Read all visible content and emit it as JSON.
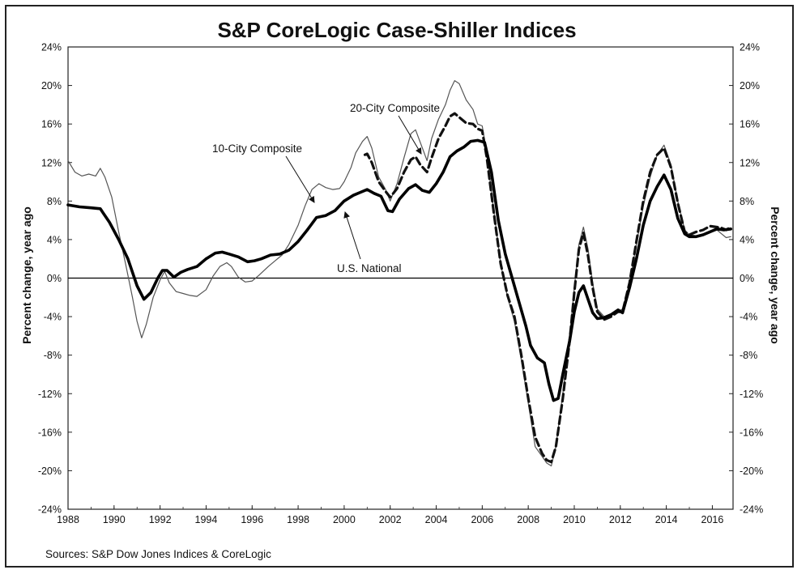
{
  "chart_data": {
    "type": "line",
    "title": "S&P CoreLogic Case-Shiller Indices",
    "ylabel_left": "Percent change, year ago",
    "ylabel_right": "Percent change, year ago",
    "source": "Sources: S&P Dow Jones Indices & CoreLogic",
    "xlim": [
      1988,
      2016.9
    ],
    "ylim": [
      -24,
      24
    ],
    "x_ticks": [
      "1988",
      "1990",
      "1992",
      "1994",
      "1996",
      "1998",
      "2000",
      "2002",
      "2004",
      "2006",
      "2008",
      "2010",
      "2012",
      "2014",
      "2016"
    ],
    "y_ticks": [
      "24%",
      "20%",
      "16%",
      "12%",
      "8%",
      "4%",
      "0%",
      "-4%",
      "-8%",
      "-12%",
      "-16%",
      "-20%",
      "-24%"
    ],
    "annotations": [
      {
        "text": "20-City Composite",
        "series": "20-City Composite"
      },
      {
        "text": "10-City Composite",
        "series": "10-City Composite"
      },
      {
        "text": "U.S. National",
        "series": "U.S. National"
      }
    ],
    "series": [
      {
        "name": "10-City Composite",
        "color": "#555555",
        "style": "thin",
        "points": [
          [
            1988,
            12.2
          ],
          [
            1988.3,
            11
          ],
          [
            1988.6,
            10.6
          ],
          [
            1988.9,
            10.8
          ],
          [
            1989.2,
            10.6
          ],
          [
            1989.4,
            11.4
          ],
          [
            1989.6,
            10.5
          ],
          [
            1989.9,
            8.4
          ],
          [
            1990.2,
            4.8
          ],
          [
            1990.5,
            1.5
          ],
          [
            1990.8,
            -2
          ],
          [
            1991.0,
            -4.5
          ],
          [
            1991.2,
            -6.2
          ],
          [
            1991.4,
            -4.8
          ],
          [
            1991.7,
            -2
          ],
          [
            1992.0,
            -0.2
          ],
          [
            1992.2,
            0.7
          ],
          [
            1992.4,
            -0.5
          ],
          [
            1992.7,
            -1.4
          ],
          [
            1993.0,
            -1.6
          ],
          [
            1993.3,
            -1.8
          ],
          [
            1993.6,
            -1.9
          ],
          [
            1994.0,
            -1.2
          ],
          [
            1994.3,
            0.2
          ],
          [
            1994.6,
            1.2
          ],
          [
            1994.9,
            1.6
          ],
          [
            1995.1,
            1.2
          ],
          [
            1995.4,
            0.1
          ],
          [
            1995.7,
            -0.4
          ],
          [
            1996.0,
            -0.3
          ],
          [
            1996.3,
            0.3
          ],
          [
            1996.7,
            1.2
          ],
          [
            1997.0,
            1.8
          ],
          [
            1997.3,
            2.4
          ],
          [
            1997.6,
            3.5
          ],
          [
            1998.0,
            5.5
          ],
          [
            1998.3,
            7.5
          ],
          [
            1998.6,
            9.2
          ],
          [
            1998.9,
            9.8
          ],
          [
            1999.2,
            9.4
          ],
          [
            1999.5,
            9.2
          ],
          [
            1999.8,
            9.3
          ],
          [
            2000.0,
            10
          ],
          [
            2000.3,
            11.5
          ],
          [
            2000.5,
            13
          ],
          [
            2000.8,
            14.2
          ],
          [
            2001.0,
            14.7
          ],
          [
            2001.2,
            13.5
          ],
          [
            2001.5,
            10.5
          ],
          [
            2001.8,
            9.2
          ],
          [
            2002.0,
            8.0
          ],
          [
            2002.3,
            9.8
          ],
          [
            2002.6,
            12.5
          ],
          [
            2002.9,
            15
          ],
          [
            2003.1,
            15.4
          ],
          [
            2003.4,
            13.5
          ],
          [
            2003.6,
            12.2
          ],
          [
            2003.8,
            14.5
          ],
          [
            2004.1,
            16.5
          ],
          [
            2004.4,
            18
          ],
          [
            2004.6,
            19.5
          ],
          [
            2004.8,
            20.5
          ],
          [
            2005.0,
            20.2
          ],
          [
            2005.3,
            18.5
          ],
          [
            2005.6,
            17.5
          ],
          [
            2005.8,
            16
          ],
          [
            2006.0,
            15.8
          ],
          [
            2006.2,
            13
          ],
          [
            2006.5,
            7
          ],
          [
            2006.8,
            1.5
          ],
          [
            2007.1,
            -2
          ],
          [
            2007.4,
            -4.5
          ],
          [
            2007.7,
            -8.5
          ],
          [
            2008.0,
            -13
          ],
          [
            2008.3,
            -17.5
          ],
          [
            2008.6,
            -18.5
          ],
          [
            2008.8,
            -19.2
          ],
          [
            2009.0,
            -19.5
          ],
          [
            2009.2,
            -17.5
          ],
          [
            2009.5,
            -12
          ],
          [
            2009.8,
            -6
          ],
          [
            2010.0,
            -1
          ],
          [
            2010.2,
            3.5
          ],
          [
            2010.4,
            5.3
          ],
          [
            2010.6,
            3
          ],
          [
            2010.8,
            -0.5
          ],
          [
            2011.0,
            -3.2
          ],
          [
            2011.3,
            -4
          ],
          [
            2011.6,
            -3.8
          ],
          [
            2011.9,
            -3.5
          ],
          [
            2012.1,
            -3.2
          ],
          [
            2012.4,
            -0.5
          ],
          [
            2012.7,
            3.5
          ],
          [
            2013.0,
            7.5
          ],
          [
            2013.3,
            10.5
          ],
          [
            2013.6,
            12.8
          ],
          [
            2013.9,
            13.8
          ],
          [
            2014.2,
            11.8
          ],
          [
            2014.5,
            8
          ],
          [
            2014.8,
            5
          ],
          [
            2015.0,
            4.5
          ],
          [
            2015.3,
            4.4
          ],
          [
            2015.6,
            4.6
          ],
          [
            2015.9,
            4.9
          ],
          [
            2016.2,
            5.0
          ],
          [
            2016.4,
            4.6
          ],
          [
            2016.6,
            4.2
          ],
          [
            2016.8,
            4.3
          ]
        ]
      },
      {
        "name": "20-City Composite",
        "color": "#111111",
        "style": "dashed",
        "points": [
          [
            2000.9,
            12.8
          ],
          [
            2001.0,
            12.9
          ],
          [
            2001.2,
            12
          ],
          [
            2001.5,
            10
          ],
          [
            2001.8,
            9
          ],
          [
            2002.0,
            8.4
          ],
          [
            2002.3,
            9.3
          ],
          [
            2002.6,
            11
          ],
          [
            2002.9,
            12.3
          ],
          [
            2003.1,
            12.6
          ],
          [
            2003.3,
            11.8
          ],
          [
            2003.6,
            11
          ],
          [
            2003.8,
            12.5
          ],
          [
            2004.1,
            14.5
          ],
          [
            2004.4,
            15.8
          ],
          [
            2004.6,
            16.8
          ],
          [
            2004.8,
            17.1
          ],
          [
            2005.0,
            16.7
          ],
          [
            2005.3,
            16.1
          ],
          [
            2005.6,
            16
          ],
          [
            2005.8,
            15.5
          ],
          [
            2006.0,
            15.3
          ],
          [
            2006.2,
            12.5
          ],
          [
            2006.5,
            6.8
          ],
          [
            2006.8,
            1.5
          ],
          [
            2007.1,
            -1.8
          ],
          [
            2007.4,
            -4
          ],
          [
            2007.7,
            -8
          ],
          [
            2008.0,
            -12.5
          ],
          [
            2008.3,
            -16.5
          ],
          [
            2008.6,
            -18.2
          ],
          [
            2008.8,
            -18.9
          ],
          [
            2009.0,
            -19.1
          ],
          [
            2009.2,
            -17.5
          ],
          [
            2009.5,
            -12.5
          ],
          [
            2009.8,
            -6.5
          ],
          [
            2010.0,
            -1.5
          ],
          [
            2010.2,
            3
          ],
          [
            2010.4,
            4.7
          ],
          [
            2010.6,
            2.3
          ],
          [
            2010.8,
            -1
          ],
          [
            2011.0,
            -3.5
          ],
          [
            2011.3,
            -4.3
          ],
          [
            2011.6,
            -4
          ],
          [
            2011.9,
            -3.5
          ],
          [
            2012.1,
            -3.5
          ],
          [
            2012.4,
            -0.5
          ],
          [
            2012.7,
            3.8
          ],
          [
            2013.0,
            8
          ],
          [
            2013.3,
            11
          ],
          [
            2013.6,
            12.8
          ],
          [
            2013.9,
            13.5
          ],
          [
            2014.2,
            11.5
          ],
          [
            2014.5,
            7.8
          ],
          [
            2014.8,
            4.8
          ],
          [
            2015.0,
            4.5
          ],
          [
            2015.3,
            4.8
          ],
          [
            2015.6,
            5
          ],
          [
            2015.9,
            5.4
          ],
          [
            2016.2,
            5.3
          ],
          [
            2016.4,
            5.2
          ],
          [
            2016.6,
            5.0
          ],
          [
            2016.8,
            5.3
          ]
        ]
      },
      {
        "name": "U.S. National",
        "color": "#000000",
        "style": "thick",
        "points": [
          [
            1988,
            7.6
          ],
          [
            1988.5,
            7.4
          ],
          [
            1989.0,
            7.3
          ],
          [
            1989.4,
            7.2
          ],
          [
            1989.8,
            5.8
          ],
          [
            1990.2,
            4
          ],
          [
            1990.6,
            2
          ],
          [
            1991.0,
            -0.8
          ],
          [
            1991.3,
            -2.2
          ],
          [
            1991.6,
            -1.5
          ],
          [
            1991.9,
            0
          ],
          [
            1992.1,
            0.8
          ],
          [
            1992.3,
            0.8
          ],
          [
            1992.6,
            0.1
          ],
          [
            1992.9,
            0.6
          ],
          [
            1993.2,
            0.9
          ],
          [
            1993.6,
            1.2
          ],
          [
            1994.0,
            2.0
          ],
          [
            1994.4,
            2.6
          ],
          [
            1994.7,
            2.7
          ],
          [
            1995.0,
            2.5
          ],
          [
            1995.4,
            2.2
          ],
          [
            1995.8,
            1.7
          ],
          [
            1996.1,
            1.8
          ],
          [
            1996.4,
            2
          ],
          [
            1996.8,
            2.4
          ],
          [
            1997.2,
            2.5
          ],
          [
            1997.6,
            2.9
          ],
          [
            1998.0,
            3.8
          ],
          [
            1998.4,
            5
          ],
          [
            1998.8,
            6.3
          ],
          [
            1999.2,
            6.5
          ],
          [
            1999.6,
            7
          ],
          [
            2000.0,
            8
          ],
          [
            2000.4,
            8.6
          ],
          [
            2000.7,
            8.9
          ],
          [
            2001.0,
            9.2
          ],
          [
            2001.3,
            8.8
          ],
          [
            2001.6,
            8.5
          ],
          [
            2001.9,
            7
          ],
          [
            2002.1,
            6.9
          ],
          [
            2002.4,
            8.2
          ],
          [
            2002.8,
            9.3
          ],
          [
            2003.1,
            9.7
          ],
          [
            2003.4,
            9.1
          ],
          [
            2003.7,
            8.9
          ],
          [
            2004.0,
            9.8
          ],
          [
            2004.3,
            11
          ],
          [
            2004.6,
            12.6
          ],
          [
            2004.9,
            13.2
          ],
          [
            2005.2,
            13.6
          ],
          [
            2005.5,
            14.2
          ],
          [
            2005.8,
            14.3
          ],
          [
            2006.1,
            14.1
          ],
          [
            2006.4,
            11
          ],
          [
            2006.7,
            6
          ],
          [
            2007.0,
            2.5
          ],
          [
            2007.3,
            0
          ],
          [
            2007.6,
            -2.5
          ],
          [
            2007.9,
            -5
          ],
          [
            2008.1,
            -7
          ],
          [
            2008.4,
            -8.3
          ],
          [
            2008.7,
            -8.8
          ],
          [
            2008.9,
            -11
          ],
          [
            2009.1,
            -12.7
          ],
          [
            2009.3,
            -12.5
          ],
          [
            2009.5,
            -10
          ],
          [
            2009.8,
            -6.5
          ],
          [
            2010.0,
            -3.5
          ],
          [
            2010.2,
            -1.5
          ],
          [
            2010.4,
            -0.8
          ],
          [
            2010.6,
            -2.2
          ],
          [
            2010.8,
            -3.6
          ],
          [
            2011.0,
            -4.2
          ],
          [
            2011.3,
            -4.1
          ],
          [
            2011.6,
            -3.8
          ],
          [
            2011.9,
            -3.3
          ],
          [
            2012.1,
            -3.6
          ],
          [
            2012.4,
            -1
          ],
          [
            2012.7,
            2
          ],
          [
            2013.0,
            5.5
          ],
          [
            2013.3,
            8
          ],
          [
            2013.6,
            9.5
          ],
          [
            2013.9,
            10.7
          ],
          [
            2014.2,
            9.2
          ],
          [
            2014.5,
            6.2
          ],
          [
            2014.8,
            4.6
          ],
          [
            2015.0,
            4.3
          ],
          [
            2015.3,
            4.3
          ],
          [
            2015.6,
            4.5
          ],
          [
            2015.9,
            4.8
          ],
          [
            2016.2,
            5.1
          ],
          [
            2016.5,
            5.0
          ],
          [
            2016.8,
            5.1
          ]
        ]
      }
    ]
  }
}
